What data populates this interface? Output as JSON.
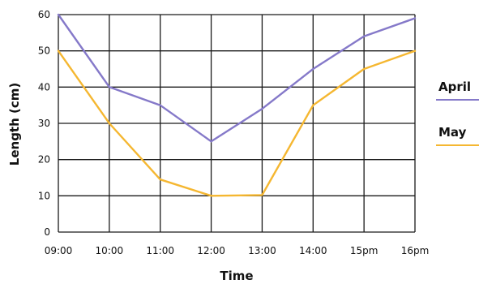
{
  "chart_data": {
    "type": "line",
    "xlabel": "Time",
    "ylabel": "Length (cm)",
    "categories": [
      "09:00",
      "10:00",
      "11:00",
      "12:00",
      "13:00",
      "14:00",
      "15pm",
      "16pm"
    ],
    "ylim": [
      0,
      60
    ],
    "yticks": [
      "0",
      "10",
      "20",
      "30",
      "40",
      "50",
      "60"
    ],
    "grid": true,
    "legend_position": "right",
    "series": [
      {
        "name": "April",
        "color": "#8579c9",
        "values": [
          60,
          40,
          35,
          25,
          34,
          45,
          54,
          59
        ]
      },
      {
        "name": "May",
        "color": "#f5b731",
        "values": [
          50,
          30,
          14.5,
          10,
          10.2,
          35,
          45,
          50
        ]
      }
    ]
  }
}
